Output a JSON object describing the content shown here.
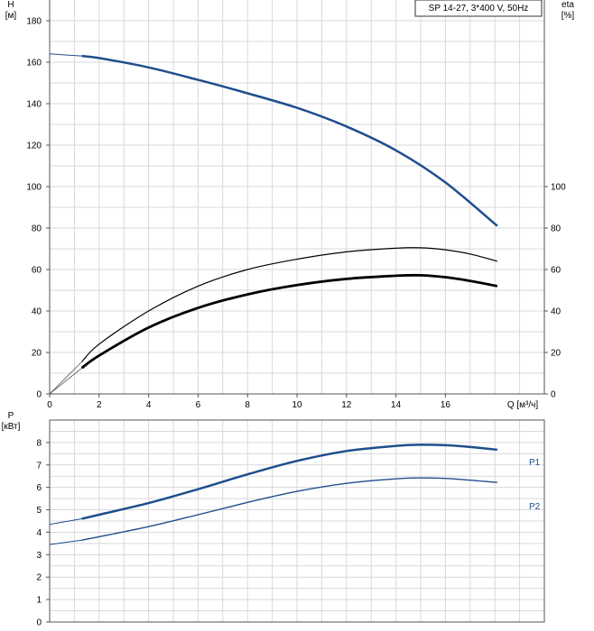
{
  "chart_data": [
    {
      "type": "line",
      "title": "SP 14-27, 3*400 V, 50Hz",
      "y_left_label": [
        "H",
        "[м]"
      ],
      "y_right_label": [
        "eta",
        "[%]"
      ],
      "x_label": "Q [м³/ч]",
      "x_ticks": [
        "0",
        "2",
        "4",
        "6",
        "8",
        "10",
        "12",
        "14",
        "16"
      ],
      "y_left_ticks": [
        "0",
        "20",
        "40",
        "60",
        "80",
        "100",
        "120",
        "140",
        "160",
        "180"
      ],
      "y_right_ticks": [
        "0",
        "20",
        "40",
        "60",
        "80",
        "100"
      ],
      "xlim": [
        0,
        20
      ],
      "ylim": [
        0,
        190
      ],
      "y_right_lim": [
        0,
        190
      ],
      "grid": true,
      "colors": {
        "head": "#1f4e8c",
        "eta": "#000000"
      },
      "series": [
        {
          "key": "head",
          "axis": "left",
          "color": "#1f4e8c",
          "x": [
            0,
            1.3,
            2,
            4,
            6,
            8,
            10,
            12,
            14,
            16,
            18.1
          ],
          "y": [
            164,
            163,
            162,
            157.5,
            151.5,
            145,
            138,
            129,
            117.5,
            102,
            81
          ]
        },
        {
          "key": "eta-thin",
          "axis": "right",
          "color": "#000000",
          "x": [
            0,
            1.3,
            2,
            4,
            6,
            8,
            10,
            12,
            14,
            15,
            16,
            17,
            18.1
          ],
          "y": [
            0,
            15.5,
            24,
            40,
            52,
            60,
            65,
            68.5,
            70.3,
            70.5,
            69.5,
            67.5,
            64
          ]
        },
        {
          "key": "eta-thick",
          "axis": "right",
          "color": "#000000",
          "x": [
            0,
            1.3,
            2,
            4,
            6,
            8,
            10,
            12,
            14,
            15,
            16,
            17,
            18.1
          ],
          "y": [
            0,
            12.5,
            18.5,
            32,
            41.5,
            48,
            52.5,
            55.5,
            57,
            57.2,
            56.3,
            54.5,
            52
          ]
        }
      ]
    },
    {
      "type": "line",
      "y_label": [
        "P",
        "[кВт]"
      ],
      "y_ticks": [
        "0",
        "1",
        "2",
        "3",
        "4",
        "5",
        "6",
        "7",
        "8"
      ],
      "xlim": [
        0,
        20
      ],
      "ylim": [
        0,
        9
      ],
      "grid": true,
      "colors": {
        "P1": "#1f4e8c",
        "P2": "#1f4e8c"
      },
      "series": [
        {
          "name": "P1",
          "color": "#1f4e8c",
          "x": [
            0,
            1.3,
            2,
            4,
            6,
            8,
            10,
            12,
            14,
            15,
            16,
            17,
            18.1
          ],
          "y": [
            4.35,
            4.6,
            4.78,
            5.3,
            5.92,
            6.58,
            7.18,
            7.62,
            7.85,
            7.9,
            7.88,
            7.8,
            7.68
          ]
        },
        {
          "name": "P2",
          "color": "#1f4e8c",
          "x": [
            0,
            1.3,
            2,
            4,
            6,
            8,
            10,
            12,
            14,
            15,
            16,
            17,
            18.1
          ],
          "y": [
            3.45,
            3.65,
            3.8,
            4.25,
            4.78,
            5.33,
            5.82,
            6.18,
            6.38,
            6.42,
            6.4,
            6.32,
            6.22
          ]
        }
      ]
    }
  ]
}
